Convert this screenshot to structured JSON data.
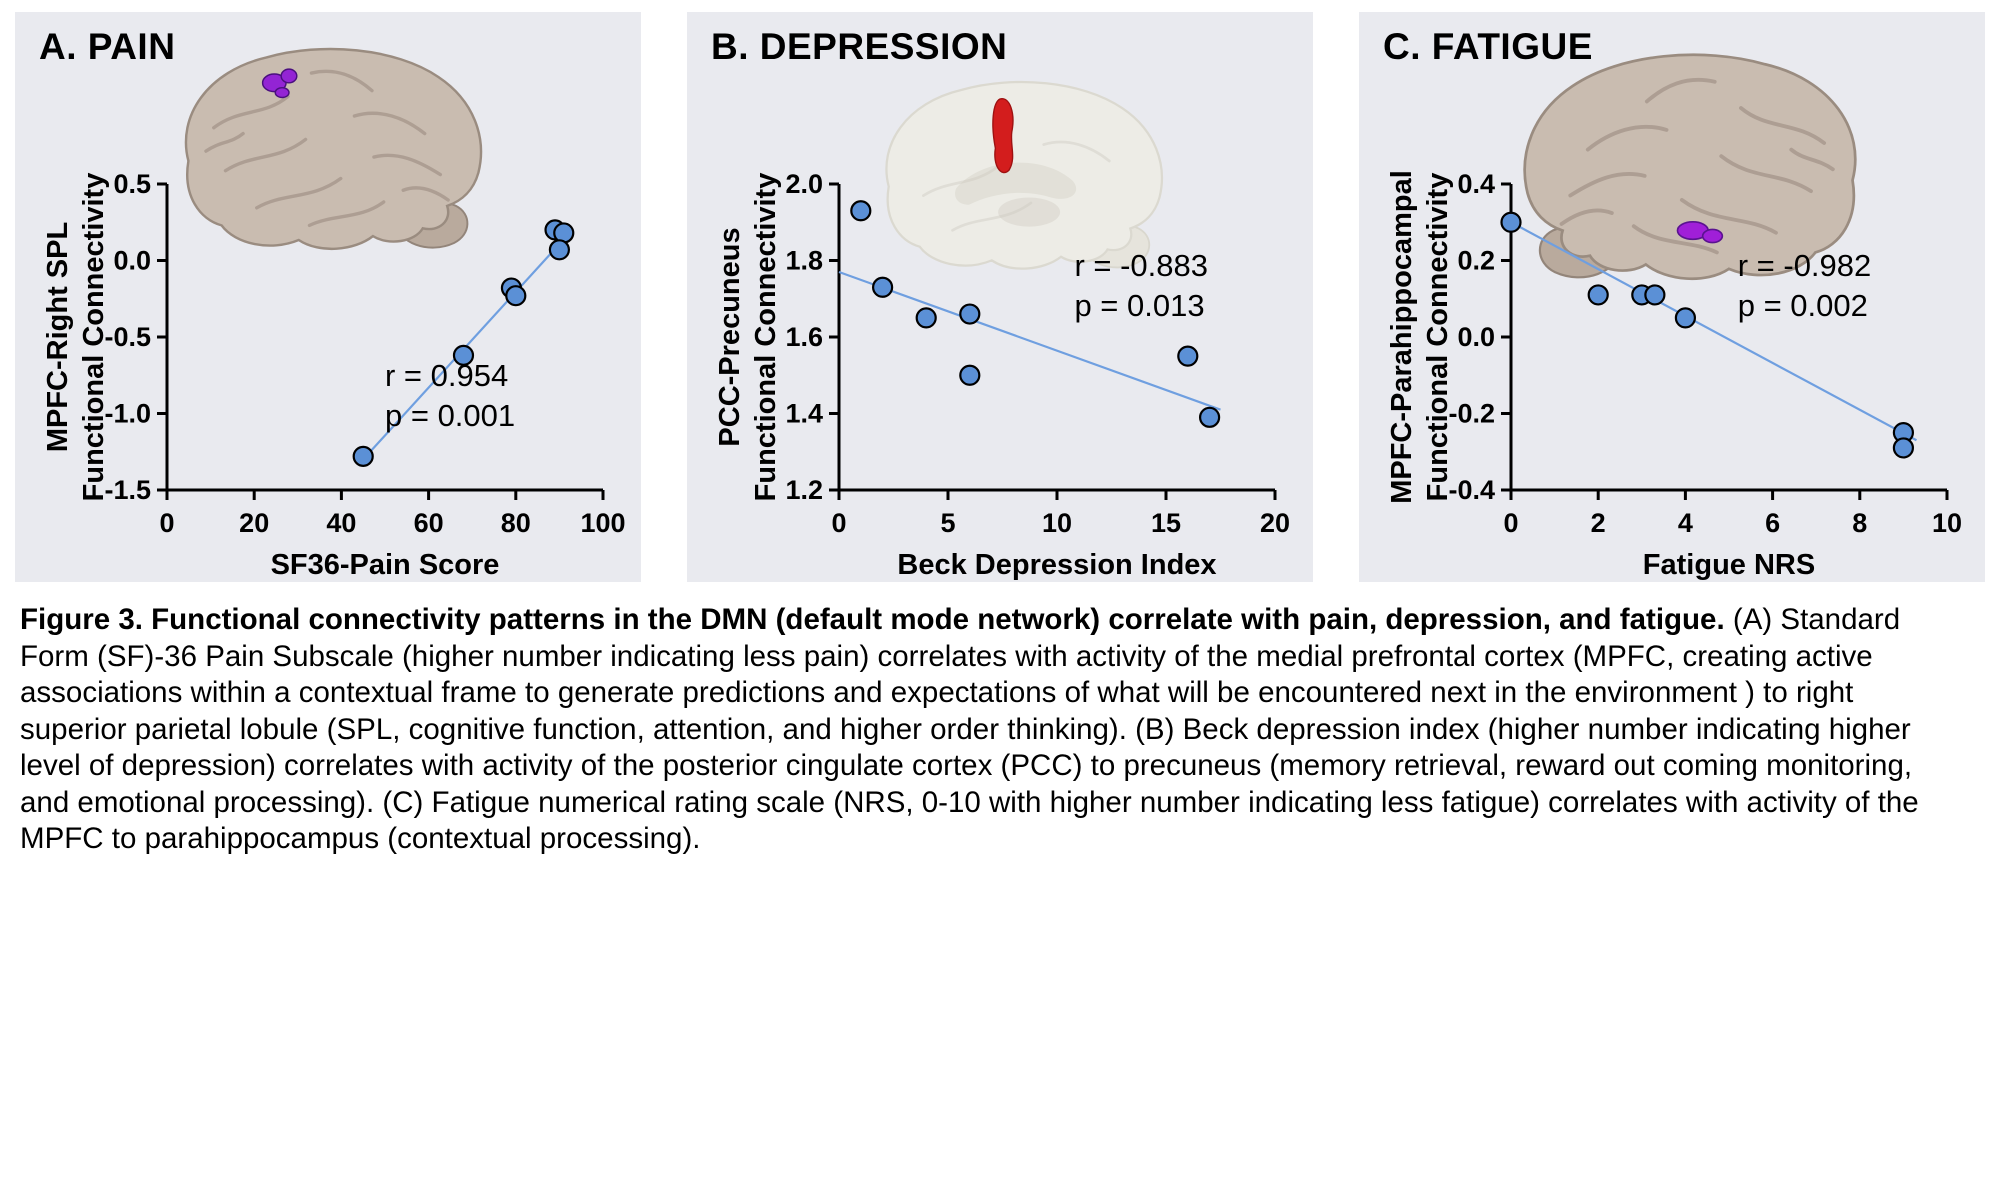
{
  "figure": {
    "caption_bold": "Figure 3. Functional connectivity patterns in the DMN (default mode network) correlate with pain, depression, and fatigue.",
    "caption_regular": " (A) Standard Form (SF)-36 Pain Subscale (higher number indicating less pain) correlates with activity of the medial prefrontal cortex (MPFC, creating active associations within a contextual frame to generate predictions and expectations of what will be encountered next in the environment ) to right superior parietal lobule (SPL, cognitive function, attention, and higher order thinking). (B) Beck depression index (higher number indicating higher level of depression) correlates with activity of the posterior cingulate cortex (PCC) to precuneus (memory retrieval, reward out coming monitoring, and emotional processing). (C) Fatigue numerical rating scale (NRS, 0-10 with higher number indicating less fatigue) correlates with activity of the MPFC to parahippocampus (contextual processing)."
  },
  "colors": {
    "panel_background": "#e9eaef",
    "point_fill": "#5b90d6",
    "trend_line": "#6f9fe0",
    "brain_tan": "#c9bcb0",
    "roi_purple": "#9324d4",
    "roi_red": "#d31d1d"
  },
  "chart_data": [
    {
      "type": "scatter",
      "panel_title": "A. PAIN",
      "xlabel": "SF36-Pain Score",
      "ylabel_lines": [
        "MPFC-Right SPL",
        "Functional Connectivity"
      ],
      "xlim": [
        0,
        100
      ],
      "ylim": [
        -1.5,
        0.5
      ],
      "xticks": [
        {
          "v": 0,
          "label": "0"
        },
        {
          "v": 20,
          "label": "20"
        },
        {
          "v": 40,
          "label": "40"
        },
        {
          "v": 60,
          "label": "60"
        },
        {
          "v": 80,
          "label": "80"
        },
        {
          "v": 100,
          "label": "100"
        }
      ],
      "yticks": [
        {
          "v": 0.5,
          "label": "0.5"
        },
        {
          "v": 0,
          "label": "0.0"
        },
        {
          "v": -0.5,
          "label": "-0.5"
        },
        {
          "v": -1,
          "label": "-1.0"
        },
        {
          "v": -1.5,
          "label": "-1.5"
        }
      ],
      "points": [
        [
          45,
          -1.28
        ],
        [
          68,
          -0.62
        ],
        [
          79,
          -0.18
        ],
        [
          80,
          -0.23
        ],
        [
          89,
          0.2
        ],
        [
          91,
          0.18
        ],
        [
          90,
          0.07
        ]
      ],
      "trendline": {
        "x1": 45,
        "y1": -1.3,
        "x2": 92,
        "y2": 0.17
      },
      "stats": {
        "r": "r = 0.954",
        "p": "p = 0.001"
      },
      "annot_frac": [
        0.5,
        0.66
      ],
      "point_color": "#5b90d6",
      "line_color": "#6f9fe0",
      "brain": {
        "view": "lateral",
        "region": "right SPL",
        "region_color": "#9324d4",
        "style": "solid"
      }
    },
    {
      "type": "scatter",
      "panel_title": "B. DEPRESSION",
      "xlabel": "Beck Depression Index",
      "ylabel_lines": [
        "PCC-Precuneus",
        "Functional Connectivity"
      ],
      "xlim": [
        0,
        20
      ],
      "ylim": [
        1.2,
        2.0
      ],
      "xticks": [
        {
          "v": 0,
          "label": "0"
        },
        {
          "v": 5,
          "label": "5"
        },
        {
          "v": 10,
          "label": "10"
        },
        {
          "v": 15,
          "label": "15"
        },
        {
          "v": 20,
          "label": "20"
        }
      ],
      "yticks": [
        {
          "v": 2.0,
          "label": "2.0"
        },
        {
          "v": 1.8,
          "label": "1.8"
        },
        {
          "v": 1.6,
          "label": "1.6"
        },
        {
          "v": 1.4,
          "label": "1.4"
        },
        {
          "v": 1.2,
          "label": "1.2"
        }
      ],
      "points": [
        [
          1,
          1.93
        ],
        [
          2,
          1.73
        ],
        [
          4,
          1.65
        ],
        [
          6,
          1.66
        ],
        [
          6,
          1.5
        ],
        [
          16,
          1.55
        ],
        [
          17,
          1.39
        ]
      ],
      "trendline": {
        "x1": 0,
        "y1": 1.77,
        "x2": 17.5,
        "y2": 1.41
      },
      "stats": {
        "r": "r = -0.883",
        "p": "p = 0.013"
      },
      "annot_frac": [
        0.54,
        0.3
      ],
      "point_color": "#5b90d6",
      "line_color": "#6f9fe0",
      "brain": {
        "view": "medial",
        "region": "precuneus",
        "region_color": "#d31d1d",
        "style": "faded"
      }
    },
    {
      "type": "scatter",
      "panel_title": "C. FATIGUE",
      "xlabel": "Fatigue NRS",
      "ylabel_lines": [
        "MPFC-Parahippocampal",
        "Functional Connectivity"
      ],
      "xlim": [
        0,
        10
      ],
      "ylim": [
        -0.4,
        0.4
      ],
      "xticks": [
        {
          "v": 0,
          "label": "0"
        },
        {
          "v": 2,
          "label": "2"
        },
        {
          "v": 4,
          "label": "4"
        },
        {
          "v": 6,
          "label": "6"
        },
        {
          "v": 8,
          "label": "8"
        },
        {
          "v": 10,
          "label": "10"
        }
      ],
      "yticks": [
        {
          "v": 0.4,
          "label": "0.4"
        },
        {
          "v": 0.2,
          "label": "0.2"
        },
        {
          "v": 0,
          "label": "0.0"
        },
        {
          "v": -0.2,
          "label": "-0.2"
        },
        {
          "v": -0.4,
          "label": "-0.4"
        }
      ],
      "points": [
        [
          0,
          0.3
        ],
        [
          2,
          0.11
        ],
        [
          3,
          0.11
        ],
        [
          3.3,
          0.11
        ],
        [
          4,
          0.05
        ],
        [
          9,
          -0.25
        ],
        [
          9,
          -0.29
        ]
      ],
      "trendline": {
        "x1": 0,
        "y1": 0.3,
        "x2": 9.3,
        "y2": -0.27
      },
      "stats": {
        "r": "r = -0.982",
        "p": "p = 0.002"
      },
      "annot_frac": [
        0.52,
        0.3
      ],
      "point_color": "#5b90d6",
      "line_color": "#6f9fe0",
      "brain": {
        "view": "lateral",
        "region": "parahippocampus",
        "region_color": "#a01fd8",
        "style": "solid"
      }
    }
  ]
}
